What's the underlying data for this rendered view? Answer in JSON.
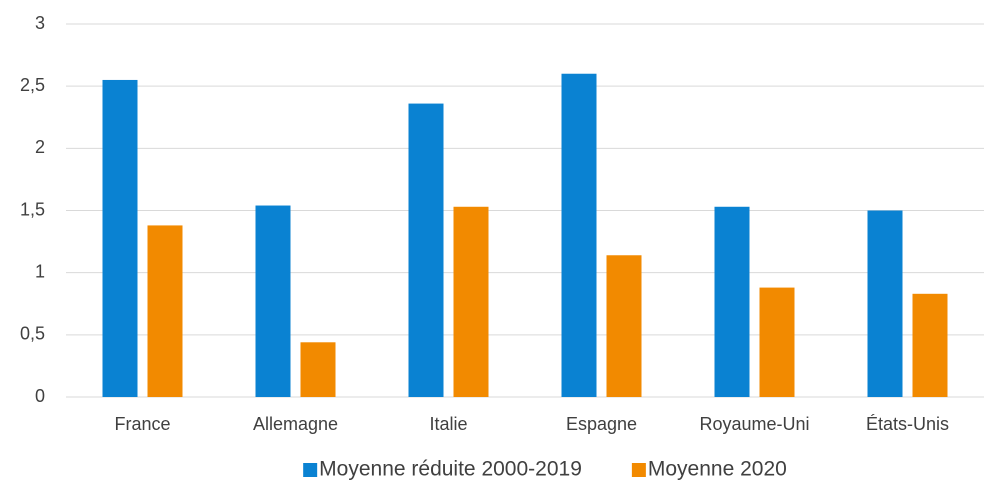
{
  "chart_data": {
    "type": "bar",
    "categories": [
      "France",
      "Allemagne",
      "Italie",
      "Espagne",
      "Royaume-Uni",
      "États-Unis"
    ],
    "series": [
      {
        "name": "Moyenne réduite 2000-2019",
        "color": "#0a82d2",
        "values": [
          2.55,
          1.54,
          2.36,
          2.6,
          1.53,
          1.5
        ]
      },
      {
        "name": "Moyenne 2020",
        "color": "#f28a00",
        "values": [
          1.38,
          0.44,
          1.53,
          1.14,
          0.88,
          0.83
        ]
      }
    ],
    "ylim": [
      0,
      3
    ],
    "yticks": [
      0,
      {
        "value": 0.5,
        "label": "0,5"
      },
      1,
      {
        "value": 1.5,
        "label": "1,5"
      },
      2,
      {
        "value": 2.5,
        "label": "2,5"
      },
      3
    ],
    "grid": true,
    "legend": "bottom"
  }
}
